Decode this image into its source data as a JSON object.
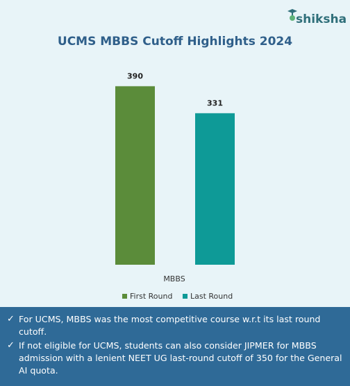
{
  "brand": {
    "name": "shiksha",
    "logo_icon": "graduation-cap-icon"
  },
  "chart_data": {
    "type": "bar",
    "title": "UCMS MBBS Cutoff Highlights 2024",
    "categories": [
      "MBBS"
    ],
    "series": [
      {
        "name": "First Round",
        "values": [
          390
        ],
        "color": "#5b8c3a"
      },
      {
        "name": "Last Round",
        "values": [
          331
        ],
        "color": "#0e9a97"
      }
    ],
    "ylim": [
      0,
      430
    ],
    "grid": false,
    "legend": "bottom",
    "data_labels": [
      "390",
      "331"
    ]
  },
  "notes": [
    "For UCMS, MBBS was the most competitive course w.r.t its last round cutoff.",
    "If not eligible for UCMS, students can also consider JIPMER for MBBS admission with a lenient NEET UG last-round cutoff of 350 for the General AI quota."
  ],
  "check_icon": "checkmark-icon"
}
